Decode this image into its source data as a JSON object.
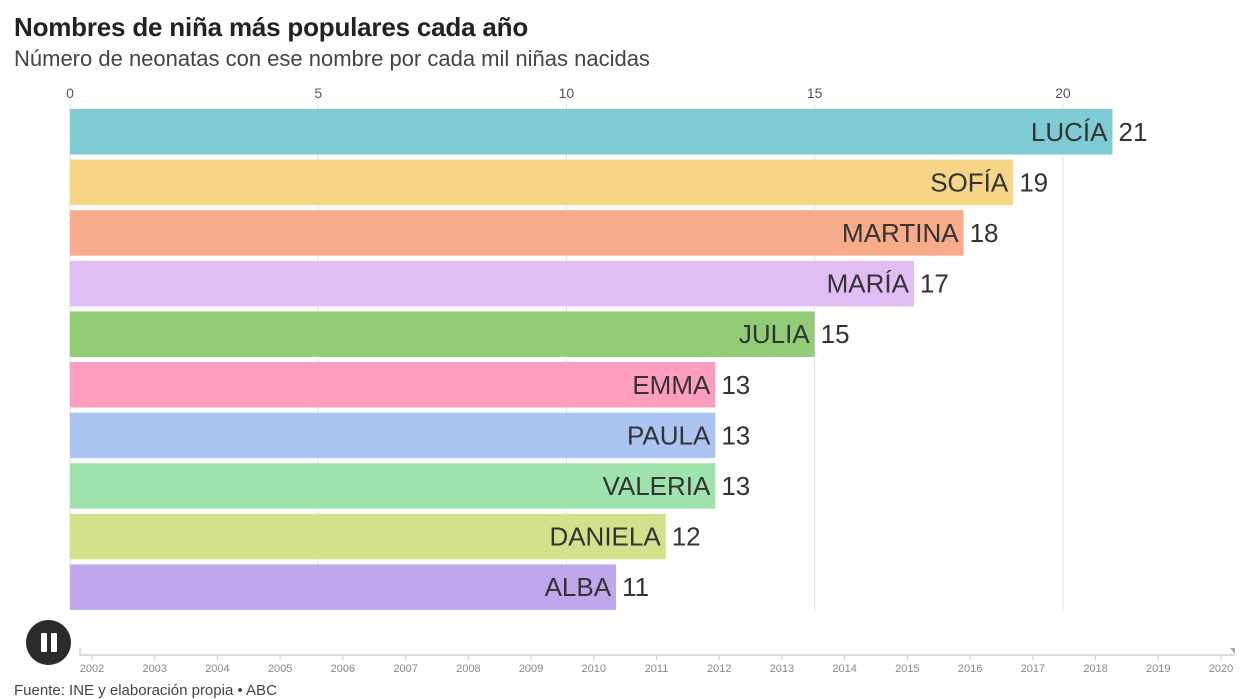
{
  "header": {
    "title": "Nombres de niña más populares cada año",
    "subtitle": "Número de neonatas con ese nombre por cada mil niñas nacidas"
  },
  "chart_data": {
    "type": "bar",
    "orientation": "horizontal",
    "categories": [
      "LUCÍA",
      "SOFÍA",
      "MARTINA",
      "MARÍA",
      "JULIA",
      "EMMA",
      "PAULA",
      "VALERIA",
      "DANIELA",
      "ALBA"
    ],
    "values": [
      21,
      19,
      18,
      17,
      15,
      13,
      13,
      13,
      12,
      11
    ],
    "value_labels": [
      "21",
      "19",
      "18",
      "17",
      "15",
      "13",
      "13",
      "13",
      "12",
      "11"
    ],
    "colors": [
      "#7ecbd3",
      "#f6d587",
      "#f7ab8b",
      "#e0bdf4",
      "#93cc77",
      "#fd9ebf",
      "#abc4f1",
      "#9ee3ad",
      "#d4e08a",
      "#c0a6ea"
    ],
    "xlim": [
      0,
      23
    ],
    "x_ticks": [
      0,
      5,
      10,
      15,
      20
    ],
    "x_tick_labels": [
      "0",
      "5",
      "10",
      "15",
      "20"
    ],
    "axis_position": "top",
    "grid": true,
    "labels_position": "inside-bar-end",
    "timeline_years": [
      "2002",
      "2003",
      "2004",
      "2005",
      "2006",
      "2007",
      "2008",
      "2009",
      "2010",
      "2011",
      "2012",
      "2013",
      "2014",
      "2015",
      "2016",
      "2017",
      "2018",
      "2019",
      "2020"
    ],
    "current_year": "2020"
  },
  "controls": {
    "play_state": "playing",
    "pause_icon": "pause-icon"
  },
  "footer": {
    "source": "Fuente: INE y elaboración propia • ABC"
  }
}
